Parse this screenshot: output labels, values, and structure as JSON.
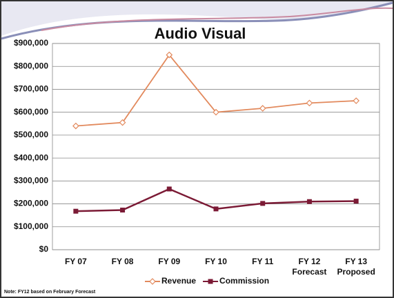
{
  "chart_data": {
    "type": "line",
    "title": "Audio Visual",
    "categories": [
      "FY 07",
      "FY 08",
      "FY 09",
      "FY 10",
      "FY 11",
      "FY 12",
      "FY 13"
    ],
    "category_sublabels": [
      null,
      null,
      null,
      null,
      null,
      "Forecast",
      "Proposed"
    ],
    "series": [
      {
        "name": "Revenue",
        "color": "#e2895c",
        "marker": "diamond",
        "values": [
          540000,
          555000,
          850000,
          600000,
          617000,
          640000,
          650000
        ]
      },
      {
        "name": "Commission",
        "color": "#7b1a35",
        "marker": "square",
        "values": [
          168000,
          173000,
          265000,
          178000,
          202000,
          210000,
          212000
        ]
      }
    ],
    "ylim": [
      0,
      900000
    ],
    "yticks": [
      {
        "value": 0,
        "label": "$0"
      },
      {
        "value": 100000,
        "label": "$100,000"
      },
      {
        "value": 200000,
        "label": "$200,000"
      },
      {
        "value": 300000,
        "label": "$300,000"
      },
      {
        "value": 400000,
        "label": "$400,000"
      },
      {
        "value": 500000,
        "label": "$500,000"
      },
      {
        "value": 600000,
        "label": "$600,000"
      },
      {
        "value": 700000,
        "label": "$700,000"
      },
      {
        "value": 800000,
        "label": "$800,000"
      },
      {
        "value": 900000,
        "label": "$900,000"
      }
    ],
    "grid": true,
    "legend": "bottom",
    "note": "Note: FY12 based on February Forecast"
  }
}
